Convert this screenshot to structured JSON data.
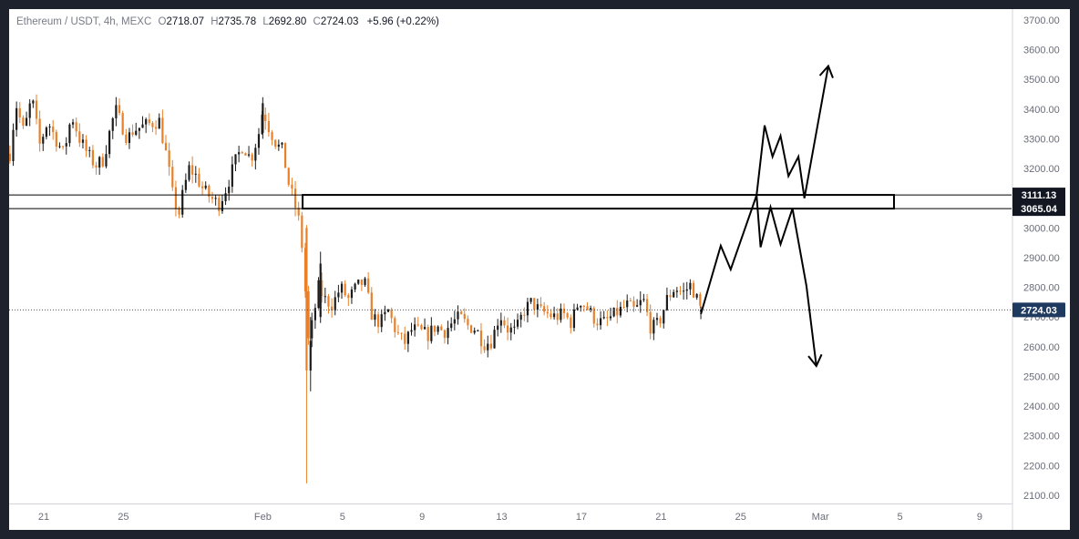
{
  "header": {
    "symbol": "Ethereum / USDT, 4h, MEXC",
    "open_label": "O",
    "open": "2718.07",
    "high_label": "H",
    "high": "2735.78",
    "low_label": "L",
    "low": "2692.80",
    "close_label": "C",
    "close": "2724.03",
    "change": "+5.96 (+0.22%)"
  },
  "colors": {
    "up": "#1c1c1c",
    "down": "#e8802a",
    "axis_text": "#6a6d78",
    "drawing": "#000000",
    "price_tag_bg": "#131722",
    "current_tag_bg": "#1e3a5f"
  },
  "chart_data": {
    "type": "candlestick",
    "timeframe": "4h",
    "ylim": [
      2080,
      3740
    ],
    "y_ticks": [
      2100,
      2200,
      2300,
      2400,
      2500,
      2600,
      2700,
      2800,
      2900,
      3000,
      3100,
      3200,
      3300,
      3400,
      3500,
      3600,
      3700
    ],
    "y_tick_labels": [
      "2100.00",
      "2200.00",
      "2300.00",
      "2400.00",
      "2500.00",
      "2600.00",
      "2700.00",
      "2800.00",
      "2900.00",
      "3000.00",
      "3100.00",
      "3200.00",
      "3300.00",
      "3400.00",
      "3500.00",
      "3600.00",
      "3700.00"
    ],
    "x_ticks": [
      {
        "label": "21",
        "day": 0
      },
      {
        "label": "25",
        "day": 4
      },
      {
        "label": "Feb",
        "day": 11
      },
      {
        "label": "5",
        "day": 15
      },
      {
        "label": "9",
        "day": 19
      },
      {
        "label": "13",
        "day": 23
      },
      {
        "label": "17",
        "day": 27
      },
      {
        "label": "21",
        "day": 31
      },
      {
        "label": "25",
        "day": 35
      },
      {
        "label": "Mar",
        "day": 39
      },
      {
        "label": "5",
        "day": 43
      },
      {
        "label": "9",
        "day": 47
      }
    ],
    "price_path": [
      [
        -1.7,
        3250
      ],
      [
        -1.4,
        3420
      ],
      [
        -1.0,
        3320
      ],
      [
        -0.6,
        3440
      ],
      [
        -0.2,
        3280
      ],
      [
        0.2,
        3360
      ],
      [
        0.6,
        3300
      ],
      [
        1.0,
        3250
      ],
      [
        1.4,
        3380
      ],
      [
        1.8,
        3300
      ],
      [
        2.2,
        3250
      ],
      [
        2.6,
        3210
      ],
      [
        3.0,
        3230
      ],
      [
        3.3,
        3320
      ],
      [
        3.6,
        3400
      ],
      [
        3.9,
        3350
      ],
      [
        4.2,
        3300
      ],
      [
        4.5,
        3330
      ],
      [
        4.9,
        3340
      ],
      [
        5.3,
        3350
      ],
      [
        5.8,
        3360
      ],
      [
        6.2,
        3230
      ],
      [
        6.5,
        3100
      ],
      [
        6.8,
        3050
      ],
      [
        7.0,
        3120
      ],
      [
        7.3,
        3200
      ],
      [
        7.6,
        3180
      ],
      [
        8.0,
        3130
      ],
      [
        8.4,
        3100
      ],
      [
        8.8,
        3080
      ],
      [
        9.2,
        3140
      ],
      [
        9.6,
        3220
      ],
      [
        10.0,
        3280
      ],
      [
        10.4,
        3230
      ],
      [
        10.8,
        3320
      ],
      [
        11.0,
        3400
      ],
      [
        11.3,
        3340
      ],
      [
        11.7,
        3280
      ],
      [
        12.0,
        3260
      ],
      [
        12.3,
        3150
      ],
      [
        12.6,
        3080
      ],
      [
        12.9,
        3000
      ],
      [
        13.1,
        2820
      ],
      [
        13.3,
        2620
      ],
      [
        13.5,
        2680
      ],
      [
        13.8,
        2800
      ],
      [
        14.1,
        2760
      ],
      [
        14.5,
        2740
      ],
      [
        14.9,
        2800
      ],
      [
        15.3,
        2760
      ],
      [
        15.7,
        2800
      ],
      [
        16.1,
        2820
      ],
      [
        16.5,
        2700
      ],
      [
        16.9,
        2680
      ],
      [
        17.3,
        2720
      ],
      [
        17.7,
        2650
      ],
      [
        18.1,
        2610
      ],
      [
        18.5,
        2660
      ],
      [
        18.9,
        2650
      ],
      [
        19.3,
        2640
      ],
      [
        19.7,
        2670
      ],
      [
        20.1,
        2650
      ],
      [
        20.5,
        2680
      ],
      [
        20.9,
        2700
      ],
      [
        21.3,
        2670
      ],
      [
        21.7,
        2660
      ],
      [
        22.1,
        2610
      ],
      [
        22.5,
        2620
      ],
      [
        22.9,
        2710
      ],
      [
        23.3,
        2660
      ],
      [
        23.7,
        2650
      ],
      [
        24.1,
        2720
      ],
      [
        24.5,
        2750
      ],
      [
        24.9,
        2720
      ],
      [
        25.3,
        2710
      ],
      [
        25.7,
        2700
      ],
      [
        26.1,
        2710
      ],
      [
        26.5,
        2680
      ],
      [
        26.9,
        2760
      ],
      [
        27.3,
        2730
      ],
      [
        27.7,
        2690
      ],
      [
        28.1,
        2680
      ],
      [
        28.5,
        2700
      ],
      [
        28.9,
        2720
      ],
      [
        29.3,
        2740
      ],
      [
        29.7,
        2720
      ],
      [
        30.1,
        2760
      ],
      [
        30.5,
        2660
      ],
      [
        30.9,
        2680
      ],
      [
        31.3,
        2760
      ],
      [
        31.7,
        2800
      ],
      [
        32.1,
        2780
      ],
      [
        32.5,
        2810
      ],
      [
        32.8,
        2760
      ],
      [
        33.0,
        2724
      ]
    ],
    "key_candles": [
      {
        "day": 13.2,
        "open": 3000,
        "high": 3010,
        "low": 2140,
        "close": 2520
      },
      {
        "day": 13.4,
        "open": 2520,
        "high": 2700,
        "low": 2450,
        "close": 2620
      },
      {
        "day": 11.0,
        "open": 3320,
        "high": 3440,
        "low": 3300,
        "close": 3420
      },
      {
        "day": 13.9,
        "open": 2700,
        "high": 2920,
        "low": 2680,
        "close": 2880
      }
    ],
    "zone": {
      "top": 3111.13,
      "bottom": 3065.04,
      "end_day": 42.7,
      "full_width_lines": true
    },
    "price_tags": [
      {
        "label": "3111.13",
        "value": 3111.13
      },
      {
        "label": "3065.04",
        "value": 3065.04
      }
    ],
    "current_price": {
      "label": "2724.03",
      "value": 2724.03
    },
    "projection": {
      "common": [
        [
          33.0,
          2710
        ],
        [
          34.0,
          2940
        ],
        [
          34.5,
          2860
        ],
        [
          35.8,
          3110
        ]
      ],
      "bullish": [
        [
          35.8,
          3110
        ],
        [
          36.2,
          3345
        ],
        [
          36.6,
          3240
        ],
        [
          37.0,
          3310
        ],
        [
          37.4,
          3175
        ],
        [
          37.9,
          3240
        ],
        [
          38.2,
          3100
        ],
        [
          39.4,
          3545
        ]
      ],
      "bearish": [
        [
          35.8,
          3110
        ],
        [
          36.0,
          2935
        ],
        [
          36.5,
          3070
        ],
        [
          37.0,
          2945
        ],
        [
          37.6,
          3065
        ],
        [
          38.3,
          2805
        ],
        [
          38.8,
          2535
        ]
      ]
    }
  }
}
